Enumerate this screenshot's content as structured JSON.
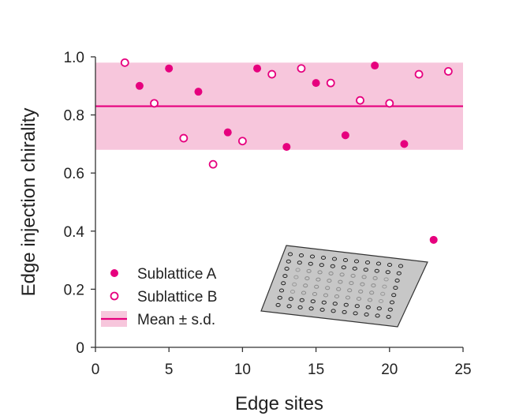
{
  "chart_data": {
    "type": "scatter",
    "xlabel": "Edge sites",
    "ylabel": "Edge injection chirality",
    "xlim": [
      0,
      25
    ],
    "ylim": [
      0,
      1.0
    ],
    "xticks": [
      0,
      5,
      10,
      15,
      20,
      25
    ],
    "yticks": [
      0,
      0.2,
      0.4,
      0.6,
      0.8,
      1.0
    ],
    "ytick_labels": [
      "0",
      "0.2",
      "0.4",
      "0.6",
      "0.8",
      "1.0"
    ],
    "grid": false,
    "legend_position": "lower-left",
    "colors": {
      "accent": "#e6007e",
      "band": "#f7c6dc"
    },
    "series": [
      {
        "name": "Sublattice A",
        "marker": "filled-circle",
        "x": [
          3,
          5,
          7,
          9,
          11,
          13,
          15,
          17,
          19,
          21,
          23
        ],
        "y": [
          0.9,
          0.96,
          0.88,
          0.74,
          0.96,
          0.69,
          0.91,
          0.73,
          0.97,
          0.7,
          0.37
        ]
      },
      {
        "name": "Sublattice B",
        "marker": "open-circle",
        "x": [
          2,
          4,
          6,
          8,
          10,
          12,
          14,
          16,
          18,
          20,
          22,
          24
        ],
        "y": [
          0.98,
          0.84,
          0.72,
          0.63,
          0.71,
          0.94,
          0.96,
          0.91,
          0.85,
          0.84,
          0.94,
          0.95
        ]
      }
    ],
    "mean": {
      "name": "Mean ± s.d.",
      "value": 0.83,
      "sd": 0.15
    },
    "inset": {
      "description_icon": "lattice-inset-icon"
    }
  }
}
